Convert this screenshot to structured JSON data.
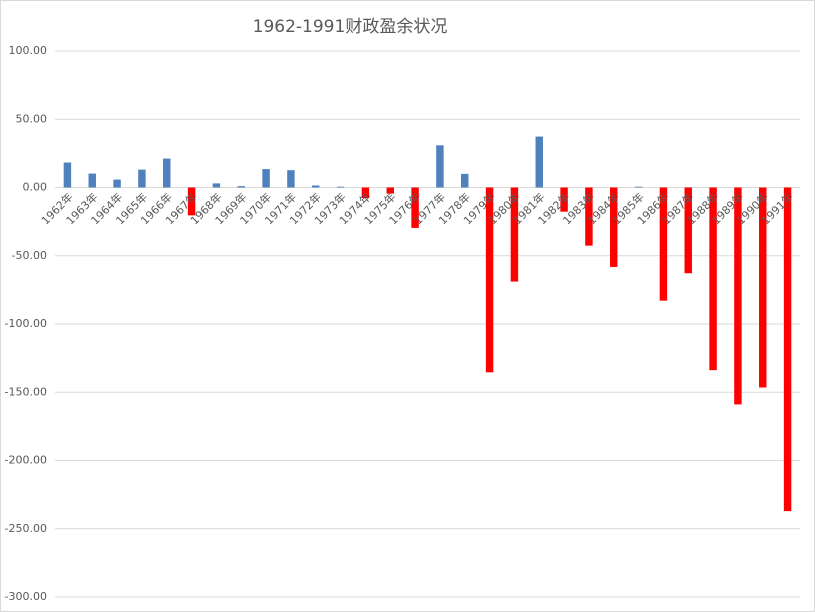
{
  "chart_data": {
    "type": "bar",
    "title": "1962-1991财政盈余状况",
    "categories": [
      "1962年",
      "1963年",
      "1964年",
      "1965年",
      "1966年",
      "1967年",
      "1968年",
      "1969年",
      "1970年",
      "1971年",
      "1972年",
      "1973年",
      "1974年",
      "1975年",
      "1976年",
      "1977年",
      "1978年",
      "1979年",
      "1980年",
      "1981年",
      "1982年",
      "1983年",
      "1984年",
      "1985年",
      "1986年",
      "1987年",
      "1988年",
      "1989年",
      "1990年",
      "1991年"
    ],
    "values": [
      18.3,
      10.2,
      5.8,
      13.1,
      21.2,
      -20.4,
      3.0,
      1.0,
      13.5,
      12.7,
      1.5,
      0.6,
      -7.7,
      -4.5,
      -29.6,
      30.9,
      10.0,
      -135.4,
      -68.9,
      37.3,
      -17.7,
      -42.6,
      -58.2,
      0.6,
      -82.9,
      -62.8,
      -133.8,
      -158.9,
      -146.5,
      -237.1
    ],
    "color": "#4f81bd",
    "negative_color": "#ff0000",
    "ylim": [
      -300,
      100
    ],
    "yticks": [
      {
        "value": -300,
        "label": "-300.00"
      },
      {
        "value": -250,
        "label": "-250.00"
      },
      {
        "value": -200,
        "label": "-200.00"
      },
      {
        "value": -150,
        "label": "-150.00"
      },
      {
        "value": -100,
        "label": "-100.00"
      },
      {
        "value": -50,
        "label": "-50.00"
      },
      {
        "value": 0,
        "label": "0.00"
      },
      {
        "value": 50,
        "label": "50.00"
      },
      {
        "value": 100,
        "label": "100.00"
      }
    ],
    "grid": true
  }
}
